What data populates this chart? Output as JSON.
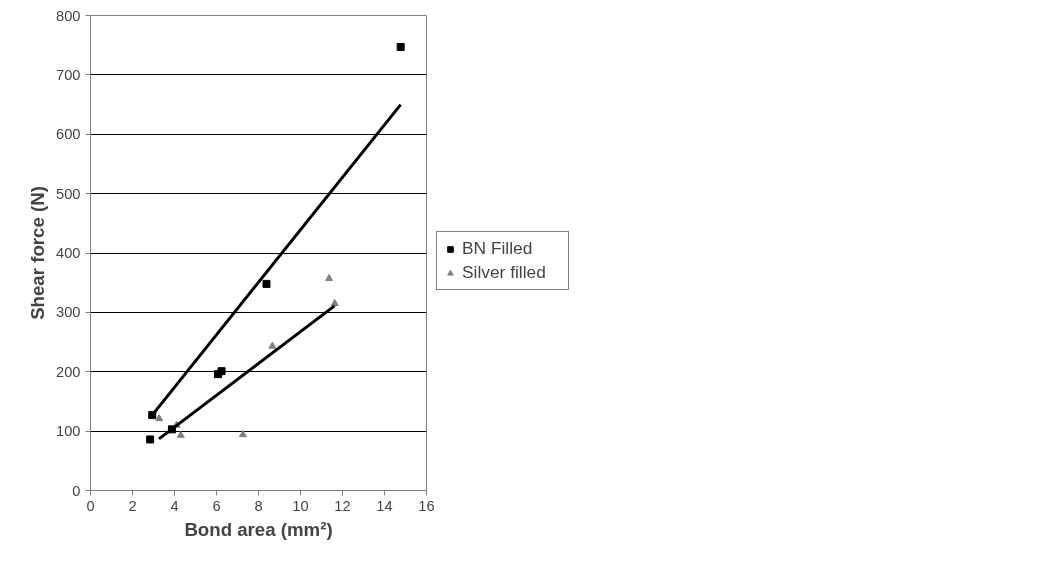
{
  "chart_data": {
    "type": "scatter",
    "xlabel": "Bond area (mm²)",
    "ylabel": "Shear force (N)",
    "xlim": [
      0,
      16
    ],
    "xticks": [
      0,
      2,
      4,
      6,
      8,
      10,
      12,
      14,
      16
    ],
    "ylim": [
      0,
      800
    ],
    "yticks": [
      0,
      100,
      200,
      300,
      400,
      500,
      600,
      700,
      800
    ],
    "grid": "y",
    "legend": "right",
    "series": [
      {
        "name": "BN Filled",
        "color": "#000000",
        "marker": "square",
        "x": [
          2.84,
          2.94,
          3.88,
          6.07,
          6.24,
          8.38,
          14.77
        ],
        "values": [
          86,
          127,
          103,
          196,
          201,
          348,
          747
        ]
      },
      {
        "name": "Silver filled",
        "color": "#808080",
        "marker": "triangle",
        "x": [
          3.27,
          4.1,
          4.3,
          7.26,
          8.66,
          11.36,
          11.63
        ],
        "values": [
          121,
          110,
          93,
          94,
          243,
          357,
          315
        ]
      },
      {
        "type": "line",
        "color": "#000000",
        "x": [
          2.94,
          14.77
        ],
        "values": [
          127,
          650
        ]
      },
      {
        "type": "line",
        "color": "#000000",
        "x": [
          3.26,
          11.62
        ],
        "values": [
          87,
          311
        ]
      }
    ]
  }
}
